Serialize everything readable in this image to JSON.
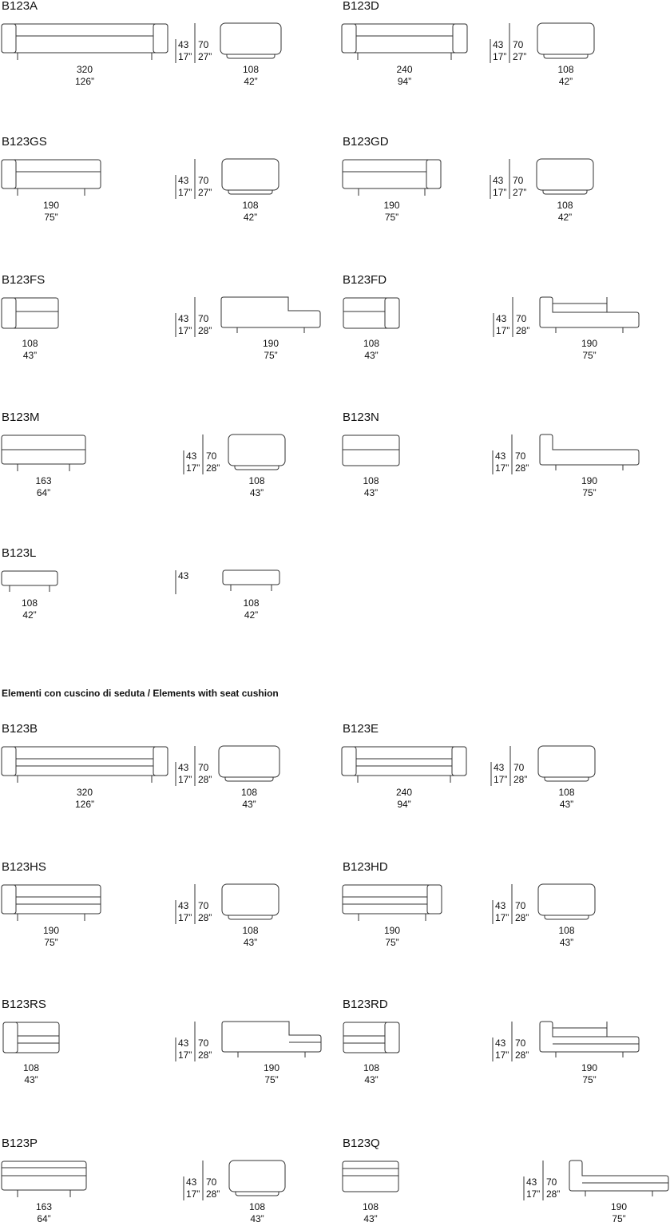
{
  "section_title": "Elementi con cuscino di seduta / Elements with seat cushion",
  "items": [
    {
      "code": "B123A",
      "front": [
        "320",
        "126”"
      ],
      "dims": [
        "43",
        "17”",
        "70",
        "27”"
      ],
      "side": [
        "108",
        "42”"
      ]
    },
    {
      "code": "B123D",
      "front": [
        "240",
        "94”"
      ],
      "dims": [
        "43",
        "17”",
        "70",
        "27”"
      ],
      "side": [
        "108",
        "42”"
      ]
    },
    {
      "code": "B123GS",
      "front": [
        "190",
        "75”"
      ],
      "dims": [
        "43",
        "17”",
        "70",
        "27”"
      ],
      "side": [
        "108",
        "42”"
      ]
    },
    {
      "code": "B123GD",
      "front": [
        "190",
        "75”"
      ],
      "dims": [
        "43",
        "17”",
        "70",
        "27”"
      ],
      "side": [
        "108",
        "42”"
      ]
    },
    {
      "code": "B123FS",
      "front": [
        "108",
        "43”"
      ],
      "dims": [
        "43",
        "17”",
        "70",
        "28”"
      ],
      "side": [
        "190",
        "75”"
      ]
    },
    {
      "code": "B123FD",
      "front": [
        "108",
        "43”"
      ],
      "dims": [
        "43",
        "17”",
        "70",
        "28”"
      ],
      "side": [
        "190",
        "75”"
      ]
    },
    {
      "code": "B123M",
      "front": [
        "163",
        "64”"
      ],
      "dims": [
        "43",
        "17”",
        "70",
        "28”"
      ],
      "side": [
        "108",
        "43”"
      ]
    },
    {
      "code": "B123N",
      "front": [
        "108",
        "43”"
      ],
      "dims": [
        "43",
        "17”",
        "70",
        "28”"
      ],
      "side": [
        "190",
        "75”"
      ]
    },
    {
      "code": "B123L",
      "front": [
        "108",
        "42”"
      ],
      "dims": [
        "43"
      ],
      "side": [
        "108",
        "42”"
      ]
    },
    {
      "code": "B123B",
      "front": [
        "320",
        "126”"
      ],
      "dims": [
        "43",
        "17”",
        "70",
        "28”"
      ],
      "side": [
        "108",
        "43”"
      ]
    },
    {
      "code": "B123E",
      "front": [
        "240",
        "94”"
      ],
      "dims": [
        "43",
        "17”",
        "70",
        "28”"
      ],
      "side": [
        "108",
        "43”"
      ]
    },
    {
      "code": "B123HS",
      "front": [
        "190",
        "75”"
      ],
      "dims": [
        "43",
        "17”",
        "70",
        "28”"
      ],
      "side": [
        "108",
        "43”"
      ]
    },
    {
      "code": "B123HD",
      "front": [
        "190",
        "75”"
      ],
      "dims": [
        "43",
        "17”",
        "70",
        "28”"
      ],
      "side": [
        "108",
        "43”"
      ]
    },
    {
      "code": "B123RS",
      "front": [
        "108",
        "43”"
      ],
      "dims": [
        "43",
        "17”",
        "70",
        "28”"
      ],
      "side": [
        "190",
        "75”"
      ]
    },
    {
      "code": "B123RD",
      "front": [
        "108",
        "43”"
      ],
      "dims": [
        "43",
        "17”",
        "70",
        "28”"
      ],
      "side": [
        "190",
        "75”"
      ]
    },
    {
      "code": "B123P",
      "front": [
        "163",
        "64”"
      ],
      "dims": [
        "43",
        "17”",
        "70",
        "28”"
      ],
      "side": [
        "108",
        "43”"
      ]
    },
    {
      "code": "B123Q",
      "front": [
        "108",
        "43”"
      ],
      "dims": [
        "43",
        "17”",
        "70",
        "28”"
      ],
      "side": [
        "190",
        "75”"
      ]
    }
  ]
}
